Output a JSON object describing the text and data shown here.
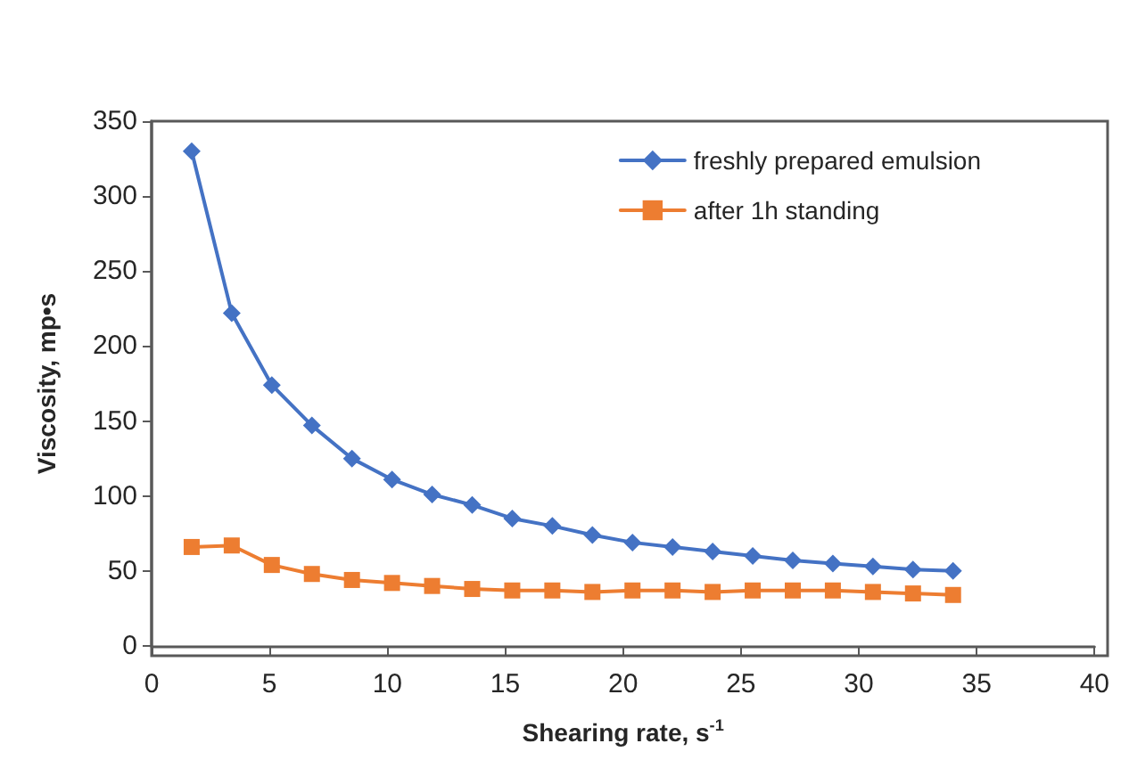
{
  "chart_data": {
    "type": "line",
    "xlabel": "Shearing rate, s$^{-1}$",
    "ylabel": "Viscosity, mp•s",
    "xlim": [
      0,
      40
    ],
    "xticks": [
      0,
      5,
      10,
      15,
      20,
      25,
      30,
      35,
      40
    ],
    "ylim": [
      0,
      350
    ],
    "yticks": [
      0,
      50,
      100,
      150,
      200,
      250,
      300,
      350
    ],
    "grid": false,
    "legend": "top right",
    "line_style": "solid",
    "x": [
      1.7,
      3.4,
      5.1,
      6.8,
      8.5,
      10.2,
      11.9,
      13.6,
      15.3,
      17,
      18.7,
      20.4,
      22.1,
      23.8,
      25.5,
      27.2,
      28.9,
      30.6,
      32.3,
      34.0
    ],
    "series": [
      {
        "name": "freshly prepared emulsion",
        "color": "#4472c4",
        "marker": "diamond",
        "values": [
          330,
          222,
          174,
          147,
          125,
          111,
          101,
          94,
          85,
          80,
          74,
          69,
          66,
          63,
          60,
          57,
          55,
          53,
          51,
          50
        ]
      },
      {
        "name": "after 1h standing",
        "color": "#ed7d31",
        "marker": "square",
        "values": [
          66,
          67,
          54,
          48,
          44,
          42,
          40,
          38,
          37,
          37,
          36,
          37,
          37,
          36,
          37,
          37,
          37,
          36,
          35,
          34
        ]
      }
    ]
  }
}
